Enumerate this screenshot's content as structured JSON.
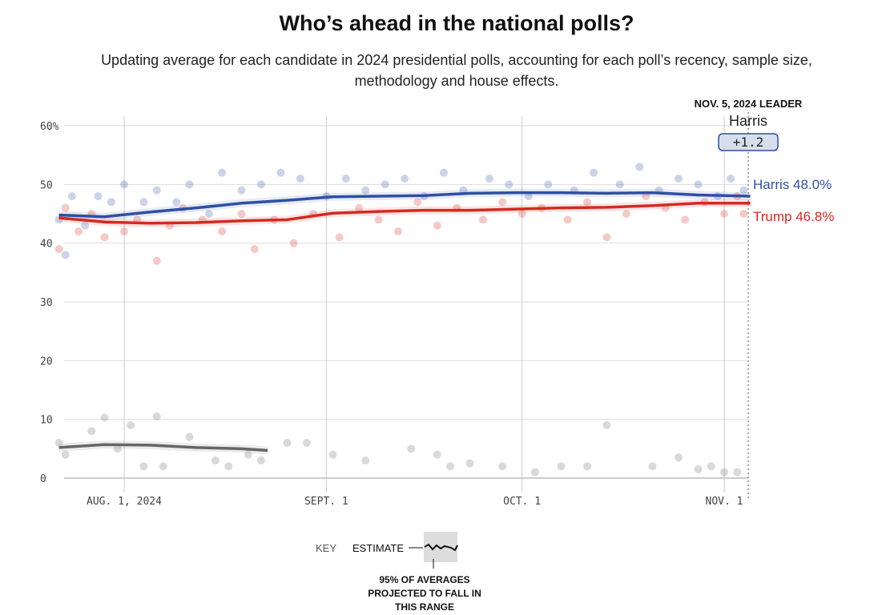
{
  "title": "Who’s ahead in the national polls?",
  "subtitle": "Updating average for each candidate in 2024 presidential polls, accounting for each poll’s recency, sample size, methodology and house effects.",
  "leader": {
    "heading": "NOV. 5, 2024 LEADER",
    "name": "Harris",
    "margin": "+1.2"
  },
  "key": {
    "label": "KEY",
    "estimate": "ESTIMATE",
    "range_note_1": "95% OF AVERAGES",
    "range_note_2": "PROJECTED TO FALL IN",
    "range_note_3": "THIS RANGE"
  },
  "chart_data": {
    "type": "line",
    "ylim": [
      0,
      60
    ],
    "y_ticks": [
      "60%",
      "50",
      "40",
      "30",
      "20",
      "10",
      "0"
    ],
    "x_ticks": [
      {
        "date": "2024-08-01",
        "label": "AUG. 1, 2024"
      },
      {
        "date": "2024-09-01",
        "label": "SEPT. 1"
      },
      {
        "date": "2024-10-01",
        "label": "OCT. 1"
      },
      {
        "date": "2024-11-01",
        "label": "NOV. 1"
      }
    ],
    "xlim": [
      "2024-07-22",
      "2024-11-05"
    ],
    "grid": true,
    "colors": {
      "Harris": "#2f4fa3",
      "Trump": "#d42a20",
      "other": "#666666"
    },
    "series": [
      {
        "name": "Harris",
        "end_label": "Harris 48.0%",
        "x": [
          "2024-07-22",
          "2024-07-29",
          "2024-08-05",
          "2024-08-12",
          "2024-08-19",
          "2024-08-26",
          "2024-09-02",
          "2024-09-09",
          "2024-09-16",
          "2024-09-23",
          "2024-09-30",
          "2024-10-07",
          "2024-10-14",
          "2024-10-21",
          "2024-10-28",
          "2024-11-05"
        ],
        "y": [
          44.8,
          44.5,
          45.3,
          46.0,
          46.8,
          47.3,
          47.9,
          48.0,
          48.1,
          48.5,
          48.6,
          48.6,
          48.5,
          48.6,
          48.2,
          48.0
        ],
        "polls": [
          [
            "2024-07-22",
            44
          ],
          [
            "2024-07-23",
            38
          ],
          [
            "2024-07-24",
            48
          ],
          [
            "2024-07-26",
            43
          ],
          [
            "2024-07-28",
            48
          ],
          [
            "2024-07-30",
            47
          ],
          [
            "2024-08-01",
            50
          ],
          [
            "2024-08-04",
            47
          ],
          [
            "2024-08-06",
            49
          ],
          [
            "2024-08-09",
            47
          ],
          [
            "2024-08-11",
            50
          ],
          [
            "2024-08-14",
            45
          ],
          [
            "2024-08-16",
            52
          ],
          [
            "2024-08-19",
            49
          ],
          [
            "2024-08-22",
            50
          ],
          [
            "2024-08-25",
            52
          ],
          [
            "2024-08-28",
            51
          ],
          [
            "2024-09-01",
            48
          ],
          [
            "2024-09-04",
            51
          ],
          [
            "2024-09-07",
            49
          ],
          [
            "2024-09-10",
            50
          ],
          [
            "2024-09-13",
            51
          ],
          [
            "2024-09-16",
            48
          ],
          [
            "2024-09-19",
            52
          ],
          [
            "2024-09-22",
            49
          ],
          [
            "2024-09-26",
            51
          ],
          [
            "2024-09-29",
            50
          ],
          [
            "2024-10-02",
            48
          ],
          [
            "2024-10-05",
            50
          ],
          [
            "2024-10-09",
            49
          ],
          [
            "2024-10-12",
            52
          ],
          [
            "2024-10-16",
            50
          ],
          [
            "2024-10-19",
            53
          ],
          [
            "2024-10-22",
            49
          ],
          [
            "2024-10-25",
            51
          ],
          [
            "2024-10-28",
            50
          ],
          [
            "2024-10-31",
            48
          ],
          [
            "2024-11-02",
            51
          ],
          [
            "2024-11-04",
            49
          ]
        ]
      },
      {
        "name": "Trump",
        "end_label": "Trump 46.8%",
        "x": [
          "2024-07-22",
          "2024-07-29",
          "2024-08-05",
          "2024-08-12",
          "2024-08-19",
          "2024-08-26",
          "2024-09-02",
          "2024-09-09",
          "2024-09-16",
          "2024-09-23",
          "2024-09-30",
          "2024-10-07",
          "2024-10-14",
          "2024-10-21",
          "2024-10-28",
          "2024-11-05"
        ],
        "y": [
          44.3,
          43.6,
          43.4,
          43.5,
          43.8,
          44.0,
          45.1,
          45.4,
          45.6,
          45.6,
          45.8,
          46.0,
          46.1,
          46.4,
          46.8,
          46.8
        ],
        "polls": [
          [
            "2024-07-22",
            39
          ],
          [
            "2024-07-23",
            46
          ],
          [
            "2024-07-25",
            42
          ],
          [
            "2024-07-27",
            45
          ],
          [
            "2024-07-29",
            41
          ],
          [
            "2024-08-01",
            42
          ],
          [
            "2024-08-03",
            44
          ],
          [
            "2024-08-06",
            37
          ],
          [
            "2024-08-08",
            43
          ],
          [
            "2024-08-10",
            46
          ],
          [
            "2024-08-13",
            44
          ],
          [
            "2024-08-16",
            42
          ],
          [
            "2024-08-19",
            45
          ],
          [
            "2024-08-21",
            39
          ],
          [
            "2024-08-24",
            44
          ],
          [
            "2024-08-27",
            40
          ],
          [
            "2024-08-30",
            45
          ],
          [
            "2024-09-03",
            41
          ],
          [
            "2024-09-06",
            46
          ],
          [
            "2024-09-09",
            44
          ],
          [
            "2024-09-12",
            42
          ],
          [
            "2024-09-15",
            47
          ],
          [
            "2024-09-18",
            43
          ],
          [
            "2024-09-21",
            46
          ],
          [
            "2024-09-25",
            44
          ],
          [
            "2024-09-28",
            47
          ],
          [
            "2024-10-01",
            45
          ],
          [
            "2024-10-04",
            46
          ],
          [
            "2024-10-08",
            44
          ],
          [
            "2024-10-11",
            47
          ],
          [
            "2024-10-14",
            41
          ],
          [
            "2024-10-17",
            45
          ],
          [
            "2024-10-20",
            48
          ],
          [
            "2024-10-23",
            46
          ],
          [
            "2024-10-26",
            44
          ],
          [
            "2024-10-29",
            47
          ],
          [
            "2024-11-01",
            45
          ],
          [
            "2024-11-03",
            48
          ],
          [
            "2024-11-04",
            45
          ]
        ]
      },
      {
        "x": [
          "2024-07-22",
          "2024-07-29",
          "2024-08-05",
          "2024-08-12",
          "2024-08-19",
          "2024-08-23"
        ],
        "y": [
          5.2,
          5.7,
          5.6,
          5.2,
          5.0,
          4.7
        ],
        "polls": [
          [
            "2024-07-22",
            6
          ],
          [
            "2024-07-23",
            4
          ],
          [
            "2024-07-27",
            8
          ],
          [
            "2024-07-29",
            10.3
          ],
          [
            "2024-07-31",
            5
          ],
          [
            "2024-08-02",
            9
          ],
          [
            "2024-08-04",
            2
          ],
          [
            "2024-08-06",
            10.5
          ],
          [
            "2024-08-07",
            2
          ],
          [
            "2024-08-11",
            7
          ],
          [
            "2024-08-15",
            3
          ],
          [
            "2024-08-17",
            2
          ],
          [
            "2024-08-20",
            4
          ],
          [
            "2024-08-22",
            3
          ],
          [
            "2024-08-26",
            6
          ],
          [
            "2024-08-29",
            6
          ],
          [
            "2024-09-02",
            4
          ],
          [
            "2024-09-07",
            3
          ],
          [
            "2024-09-14",
            5
          ],
          [
            "2024-09-18",
            4
          ],
          [
            "2024-09-20",
            2
          ],
          [
            "2024-09-23",
            2.5
          ],
          [
            "2024-09-28",
            2
          ],
          [
            "2024-10-03",
            1
          ],
          [
            "2024-10-07",
            2
          ],
          [
            "2024-10-11",
            2
          ],
          [
            "2024-10-14",
            9
          ],
          [
            "2024-10-21",
            2
          ],
          [
            "2024-10-25",
            3.5
          ],
          [
            "2024-10-28",
            1.5
          ],
          [
            "2024-10-30",
            2
          ],
          [
            "2024-11-01",
            1
          ],
          [
            "2024-11-03",
            1
          ]
        ]
      }
    ]
  }
}
